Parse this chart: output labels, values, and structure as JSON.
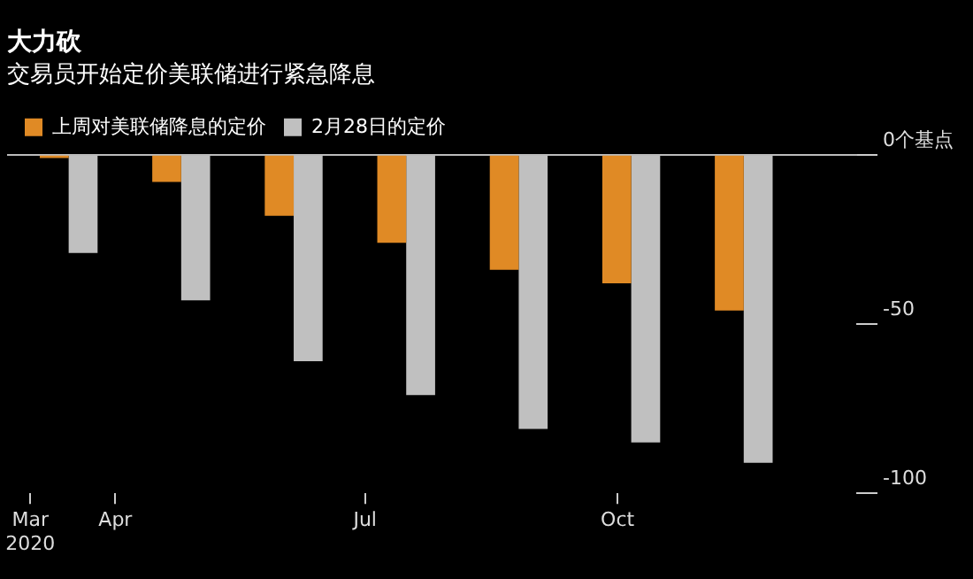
{
  "chart_data": {
    "type": "bar",
    "title": "大力砍",
    "subtitle": "交易员开始定价美联储进行紧急降息",
    "x": [
      "2020-03-15",
      "2020-04-25",
      "2020-06-05",
      "2020-07-16",
      "2020-08-26",
      "2020-10-06",
      "2020-11-16"
    ],
    "series": [
      {
        "name": "上周对美联储降息的定价",
        "color": "#e08a25",
        "values": [
          -1,
          -8,
          -18,
          -26,
          -34,
          -38,
          -46
        ]
      },
      {
        "name": "2月28日的定价",
        "color": "#c0c0c0",
        "values": [
          -29,
          -43,
          -61,
          -71,
          -81,
          -85,
          -91
        ]
      }
    ],
    "xlim": [
      "2020-02-22",
      "2020-12-27"
    ],
    "xticks": [
      {
        "value": "2020-03-01",
        "label": "Mar\n2020"
      },
      {
        "value": "2020-04-01",
        "label": "Apr"
      },
      {
        "value": "2020-07-01",
        "label": "Jul"
      },
      {
        "value": "2020-10-01",
        "label": "Oct"
      }
    ],
    "ylim": [
      -100,
      0
    ],
    "yticks": [
      {
        "value": 0,
        "label": "0个基点"
      },
      -50,
      -100
    ],
    "grid": false,
    "legend": "top left"
  }
}
